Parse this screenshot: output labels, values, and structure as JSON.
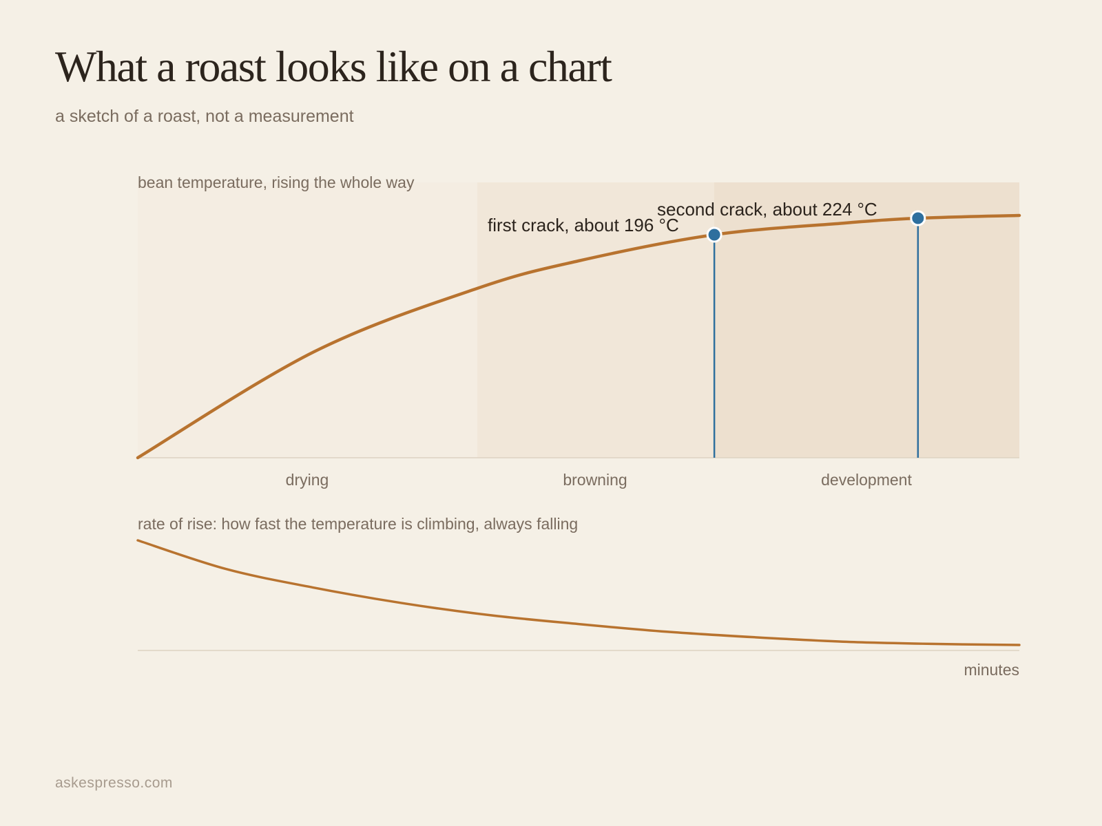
{
  "header": {
    "title": "What a roast looks like on a chart",
    "subtitle": "a sketch of a roast, not a measurement"
  },
  "footer": {
    "site": "askespresso.com"
  },
  "colors": {
    "background": "#f5f0e6",
    "curve": "#b8732f",
    "marker": "#2e6f9e",
    "band_browning": "#f1e7d9",
    "band_development": "#ede0cf",
    "band_drying": "#f4ede2"
  },
  "chart_data": [
    {
      "type": "line",
      "title": "bean temperature, rising the whole way",
      "x_domain": [
        0,
        1
      ],
      "y_domain": [
        0,
        1
      ],
      "note": "schematic sketch; axes carry no numeric ticks",
      "series": [
        {
          "points": [
            [
              0,
              0
            ],
            [
              0.2,
              0.385
            ],
            [
              0.385,
              0.615
            ],
            [
              0.5,
              0.715
            ],
            [
              0.654,
              0.81
            ],
            [
              0.8,
              0.852
            ],
            [
              0.885,
              0.87
            ],
            [
              1.0,
              0.88
            ]
          ]
        }
      ],
      "phases": [
        {
          "label": "drying",
          "start": 0,
          "end": 0.385
        },
        {
          "label": "browning",
          "start": 0.385,
          "end": 0.654
        },
        {
          "label": "development",
          "start": 0.654,
          "end": 1.0
        }
      ],
      "annotations": [
        {
          "label": "first crack, about 196 °C",
          "x": 0.654,
          "y": 0.81
        },
        {
          "label": "second crack, about 224 °C",
          "x": 0.885,
          "y": 0.87
        }
      ]
    },
    {
      "type": "line",
      "title": "rate of rise: how fast the temperature is climbing, always falling",
      "xlabel": "minutes",
      "x_domain": [
        0,
        1
      ],
      "y_domain": [
        0,
        1
      ],
      "series": [
        {
          "points": [
            [
              0,
              1.0
            ],
            [
              0.1,
              0.74
            ],
            [
              0.2,
              0.57
            ],
            [
              0.3,
              0.43
            ],
            [
              0.4,
              0.32
            ],
            [
              0.5,
              0.24
            ],
            [
              0.6,
              0.17
            ],
            [
              0.7,
              0.12
            ],
            [
              0.8,
              0.08
            ],
            [
              0.9,
              0.06
            ],
            [
              1.0,
              0.05
            ]
          ]
        }
      ]
    }
  ]
}
